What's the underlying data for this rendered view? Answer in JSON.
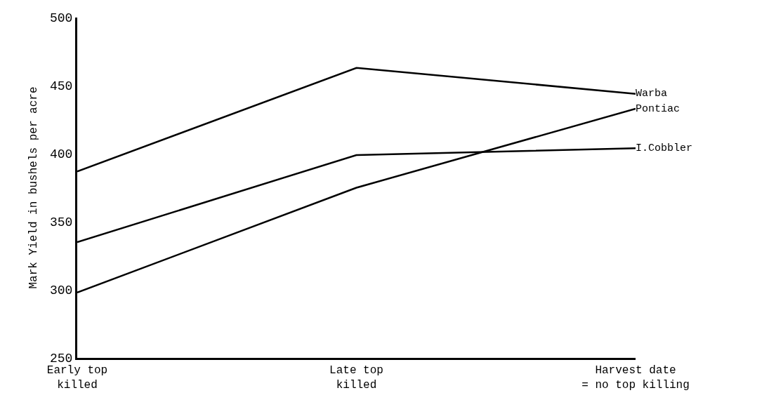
{
  "chart_data": {
    "type": "line",
    "ylabel": "Mark Yield in bushels per acre",
    "categories": [
      "Early top\nkilled",
      "Late top\nkilled",
      "Harvest date\n= no top killing"
    ],
    "series": [
      {
        "name": "Warba",
        "color": "#000000",
        "values": [
          387,
          463,
          444
        ]
      },
      {
        "name": "Pontiac",
        "color": "#000000",
        "values": [
          298,
          375,
          433
        ]
      },
      {
        "name": "I.Cobbler",
        "color": "#000000",
        "values": [
          335,
          399,
          404
        ]
      }
    ],
    "ylim": [
      250,
      500
    ],
    "yticks": [
      250,
      300,
      350,
      400,
      450,
      500
    ],
    "legend": false,
    "marker": "none",
    "line_style": "solid"
  }
}
